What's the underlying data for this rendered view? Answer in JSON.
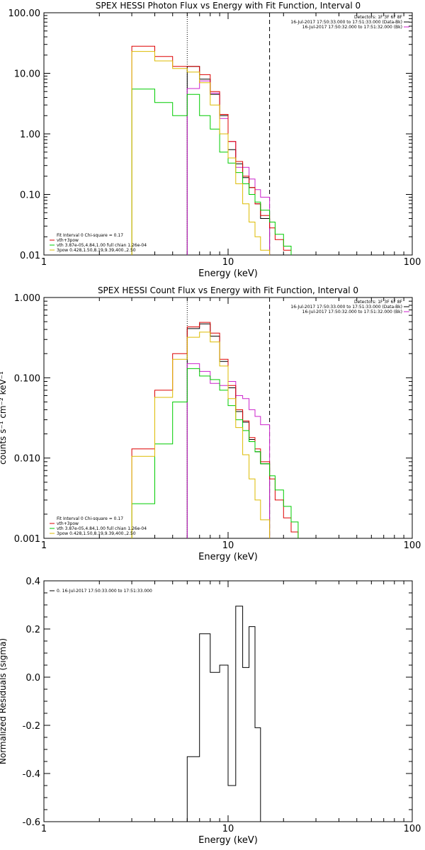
{
  "chart_data": [
    {
      "type": "step",
      "title": "SPEX HESSI Photon Flux vs Energy with Fit Function, Interval 0",
      "xlabel": "Energy (keV)",
      "ylabel": "",
      "x_scale": "log",
      "y_scale": "log",
      "xlim": [
        1,
        100
      ],
      "ylim": [
        0.01,
        100
      ],
      "x_ticks": [
        {
          "v": 1,
          "label": "1"
        },
        {
          "v": 10,
          "label": "10"
        },
        {
          "v": 100,
          "label": "100"
        }
      ],
      "y_ticks": [
        {
          "v": 0.01,
          "label": "0.01"
        },
        {
          "v": 0.1,
          "label": "0.10"
        },
        {
          "v": 1,
          "label": "1.00"
        },
        {
          "v": 10,
          "label": "10.00"
        },
        {
          "v": 100,
          "label": "100.00"
        }
      ],
      "vlines": [
        {
          "x": 6.0,
          "style": "dotted",
          "color": "#000000"
        },
        {
          "x": 16.8,
          "style": "dashed",
          "color": "#000000"
        }
      ],
      "top_right_text": [
        {
          "text": "Detectors: 1F 3F 6F 8F",
          "color": "#000000"
        },
        {
          "text": "16-Jul-2017 17:50:33.000 to 17:51:33.000 (Data-Bk)",
          "color": "#000000"
        },
        {
          "text": "16-Jul-2017 17:50:32.000 to 17:51:32.000 (Bk)",
          "color": "#cc22cc"
        }
      ],
      "legend_lines": [
        {
          "text": "Fit Interval 0   Chi-square = 0.17",
          "color": "#000000"
        },
        {
          "text": "vth+3pow",
          "color": "#dd0000"
        },
        {
          "text": "vth 3.87e-05,4.84,1.00  full chian 1.26e-04",
          "color": "#00cc00"
        },
        {
          "text": "3pow 0.428,1.50,8.19,9.39,400.,2.50",
          "color": "#ddbb00"
        }
      ],
      "series": [
        {
          "color": "#000000",
          "edges": [
            6.0,
            7.0,
            8.0,
            9.0,
            10.0,
            11.0,
            12.0,
            13.0,
            14.0,
            15.0,
            16.8
          ],
          "values": [
            13.0,
            8.0,
            4.5,
            2.0,
            0.55,
            0.32,
            0.19,
            0.13,
            0.07,
            0.04
          ]
        },
        {
          "color": "#cc22cc",
          "edges": [
            6.0,
            7.0,
            8.0,
            9.0,
            10.0,
            11.0,
            12.0,
            13.0,
            14.0,
            15.0,
            16.8
          ],
          "values": [
            5.6,
            7.5,
            4.7,
            1.8,
            0.75,
            0.28,
            0.28,
            0.18,
            0.12,
            0.09
          ]
        },
        {
          "color": "#dd0000",
          "edges": [
            3.0,
            4.0,
            5.0,
            6.0,
            7.0,
            8.0,
            9.0,
            10.0,
            11.0,
            12.0,
            13.0,
            14.0,
            15.0,
            16.8,
            18.0,
            20.0,
            22.0
          ],
          "values": [
            28.0,
            19.0,
            13.0,
            13.0,
            9.5,
            5.0,
            2.1,
            0.75,
            0.35,
            0.2,
            0.13,
            0.07,
            0.045,
            0.028,
            0.018,
            0.012
          ]
        },
        {
          "color": "#00cc00",
          "edges": [
            3.0,
            4.0,
            5.0,
            6.0,
            7.0,
            8.0,
            9.0,
            10.0,
            11.0,
            12.0,
            13.0,
            14.0,
            15.0,
            16.8,
            18.0,
            20.0,
            22.0
          ],
          "values": [
            5.5,
            3.3,
            2.0,
            4.5,
            2.0,
            1.2,
            0.5,
            0.33,
            0.23,
            0.15,
            0.1,
            0.075,
            0.055,
            0.035,
            0.022,
            0.014
          ]
        },
        {
          "color": "#ddbb00",
          "edges": [
            3.0,
            4.0,
            5.0,
            6.0,
            7.0,
            8.0,
            9.0,
            10.0,
            11.0,
            12.0,
            13.0,
            14.0,
            15.0,
            16.8
          ],
          "values": [
            23.0,
            16.0,
            12.0,
            10.5,
            7.0,
            3.0,
            1.0,
            0.4,
            0.15,
            0.07,
            0.035,
            0.02,
            0.012
          ]
        }
      ]
    },
    {
      "type": "step",
      "title": "SPEX HESSI Count Flux vs Energy with Fit Function, Interval 0",
      "xlabel": "Energy (keV)",
      "ylabel": "counts s⁻¹ cm⁻² keV⁻¹",
      "x_scale": "log",
      "y_scale": "log",
      "xlim": [
        1,
        100
      ],
      "ylim": [
        0.001,
        1
      ],
      "x_ticks": [
        {
          "v": 1,
          "label": "1"
        },
        {
          "v": 10,
          "label": "10"
        },
        {
          "v": 100,
          "label": "100"
        }
      ],
      "y_ticks": [
        {
          "v": 0.001,
          "label": "0.001"
        },
        {
          "v": 0.01,
          "label": "0.010"
        },
        {
          "v": 0.1,
          "label": "0.100"
        },
        {
          "v": 1,
          "label": "1.000"
        }
      ],
      "vlines": [
        {
          "x": 6.0,
          "style": "dotted",
          "color": "#000000"
        },
        {
          "x": 16.8,
          "style": "dashed",
          "color": "#000000"
        }
      ],
      "top_right_text": [
        {
          "text": "Detectors: 1F 3F 6F 8F",
          "color": "#000000"
        },
        {
          "text": "16-Jul-2017 17:50:33.000 to 17:51:33.000 (Data-Bk)",
          "color": "#000000"
        },
        {
          "text": "16-Jul-2017 17:50:32.000 to 17:51:32.000 (Bk)",
          "color": "#cc22cc"
        }
      ],
      "legend_lines": [
        {
          "text": "Fit Interval 0   Chi-square = 0.17",
          "color": "#000000"
        },
        {
          "text": "vth+3pow",
          "color": "#dd0000"
        },
        {
          "text": "vth 3.87e-05,4.84,1.00  full chian 1.26e-04",
          "color": "#00cc00"
        },
        {
          "text": "3pow 0.428,1.50,8.19,9.39,400.,2.50",
          "color": "#ddbb00"
        }
      ],
      "series": [
        {
          "color": "#000000",
          "edges": [
            6.0,
            7.0,
            8.0,
            9.0,
            10.0,
            11.0,
            12.0,
            13.0,
            14.0,
            15.0,
            16.8
          ],
          "values": [
            0.41,
            0.47,
            0.33,
            0.16,
            0.075,
            0.038,
            0.028,
            0.017,
            0.012,
            0.0085
          ]
        },
        {
          "color": "#cc22cc",
          "edges": [
            6.0,
            7.0,
            8.0,
            9.0,
            10.0,
            11.0,
            12.0,
            13.0,
            14.0,
            15.0,
            16.8
          ],
          "values": [
            0.15,
            0.12,
            0.085,
            0.08,
            0.09,
            0.06,
            0.055,
            0.04,
            0.033,
            0.026
          ]
        },
        {
          "color": "#dd0000",
          "edges": [
            3.0,
            4.0,
            5.0,
            6.0,
            7.0,
            8.0,
            9.0,
            10.0,
            11.0,
            12.0,
            13.0,
            14.0,
            15.0,
            16.8,
            18.0,
            20.0,
            22.0,
            24.0
          ],
          "values": [
            0.013,
            0.07,
            0.2,
            0.43,
            0.49,
            0.36,
            0.17,
            0.08,
            0.04,
            0.029,
            0.018,
            0.013,
            0.009,
            0.0055,
            0.003,
            0.0018,
            0.0012
          ]
        },
        {
          "color": "#00cc00",
          "edges": [
            3.0,
            4.0,
            5.0,
            6.0,
            7.0,
            8.0,
            9.0,
            10.0,
            11.0,
            12.0,
            13.0,
            14.0,
            15.0,
            16.8,
            18.0,
            20.0,
            22.0,
            24.0
          ],
          "values": [
            0.0027,
            0.015,
            0.05,
            0.13,
            0.105,
            0.095,
            0.07,
            0.045,
            0.03,
            0.022,
            0.016,
            0.012,
            0.0085,
            0.006,
            0.004,
            0.0025,
            0.0016
          ]
        },
        {
          "color": "#ddbb00",
          "edges": [
            3.0,
            4.0,
            5.0,
            6.0,
            7.0,
            8.0,
            9.0,
            10.0,
            11.0,
            12.0,
            13.0,
            14.0,
            15.0,
            16.8
          ],
          "values": [
            0.0105,
            0.057,
            0.17,
            0.32,
            0.37,
            0.28,
            0.14,
            0.055,
            0.024,
            0.011,
            0.0055,
            0.003,
            0.0017
          ]
        }
      ]
    },
    {
      "type": "step",
      "title": "",
      "xlabel": "Energy (keV)",
      "ylabel": "Normalized Residuals (sigma)",
      "x_scale": "log",
      "y_scale": "linear",
      "xlim": [
        1,
        100
      ],
      "ylim": [
        -0.6,
        0.4
      ],
      "x_ticks": [
        {
          "v": 1,
          "label": "1"
        },
        {
          "v": 10,
          "label": "10"
        },
        {
          "v": 100,
          "label": "100"
        }
      ],
      "y_ticks": [
        {
          "v": -0.6,
          "label": "-0.6"
        },
        {
          "v": -0.4,
          "label": "-0.4"
        },
        {
          "v": -0.2,
          "label": "-0.2"
        },
        {
          "v": 0.0,
          "label": "0.0"
        },
        {
          "v": 0.2,
          "label": "0.2"
        },
        {
          "v": 0.4,
          "label": "0.4"
        }
      ],
      "vlines": [],
      "top_right_text": [],
      "legend_lines": [
        {
          "text": "0. 16-Jul-2017 17:50:33.000 to 17:51:33.000",
          "color": "#000000"
        }
      ],
      "series": [
        {
          "color": "#000000",
          "edges": [
            6.0,
            7.0,
            8.0,
            9.0,
            10.0,
            11.0,
            12.0,
            13.0,
            14.0,
            15.0,
            16.8
          ],
          "values": [
            -0.33,
            0.18,
            0.02,
            0.05,
            -0.45,
            0.295,
            0.04,
            0.21,
            -0.21,
            -0.62
          ]
        }
      ]
    }
  ]
}
